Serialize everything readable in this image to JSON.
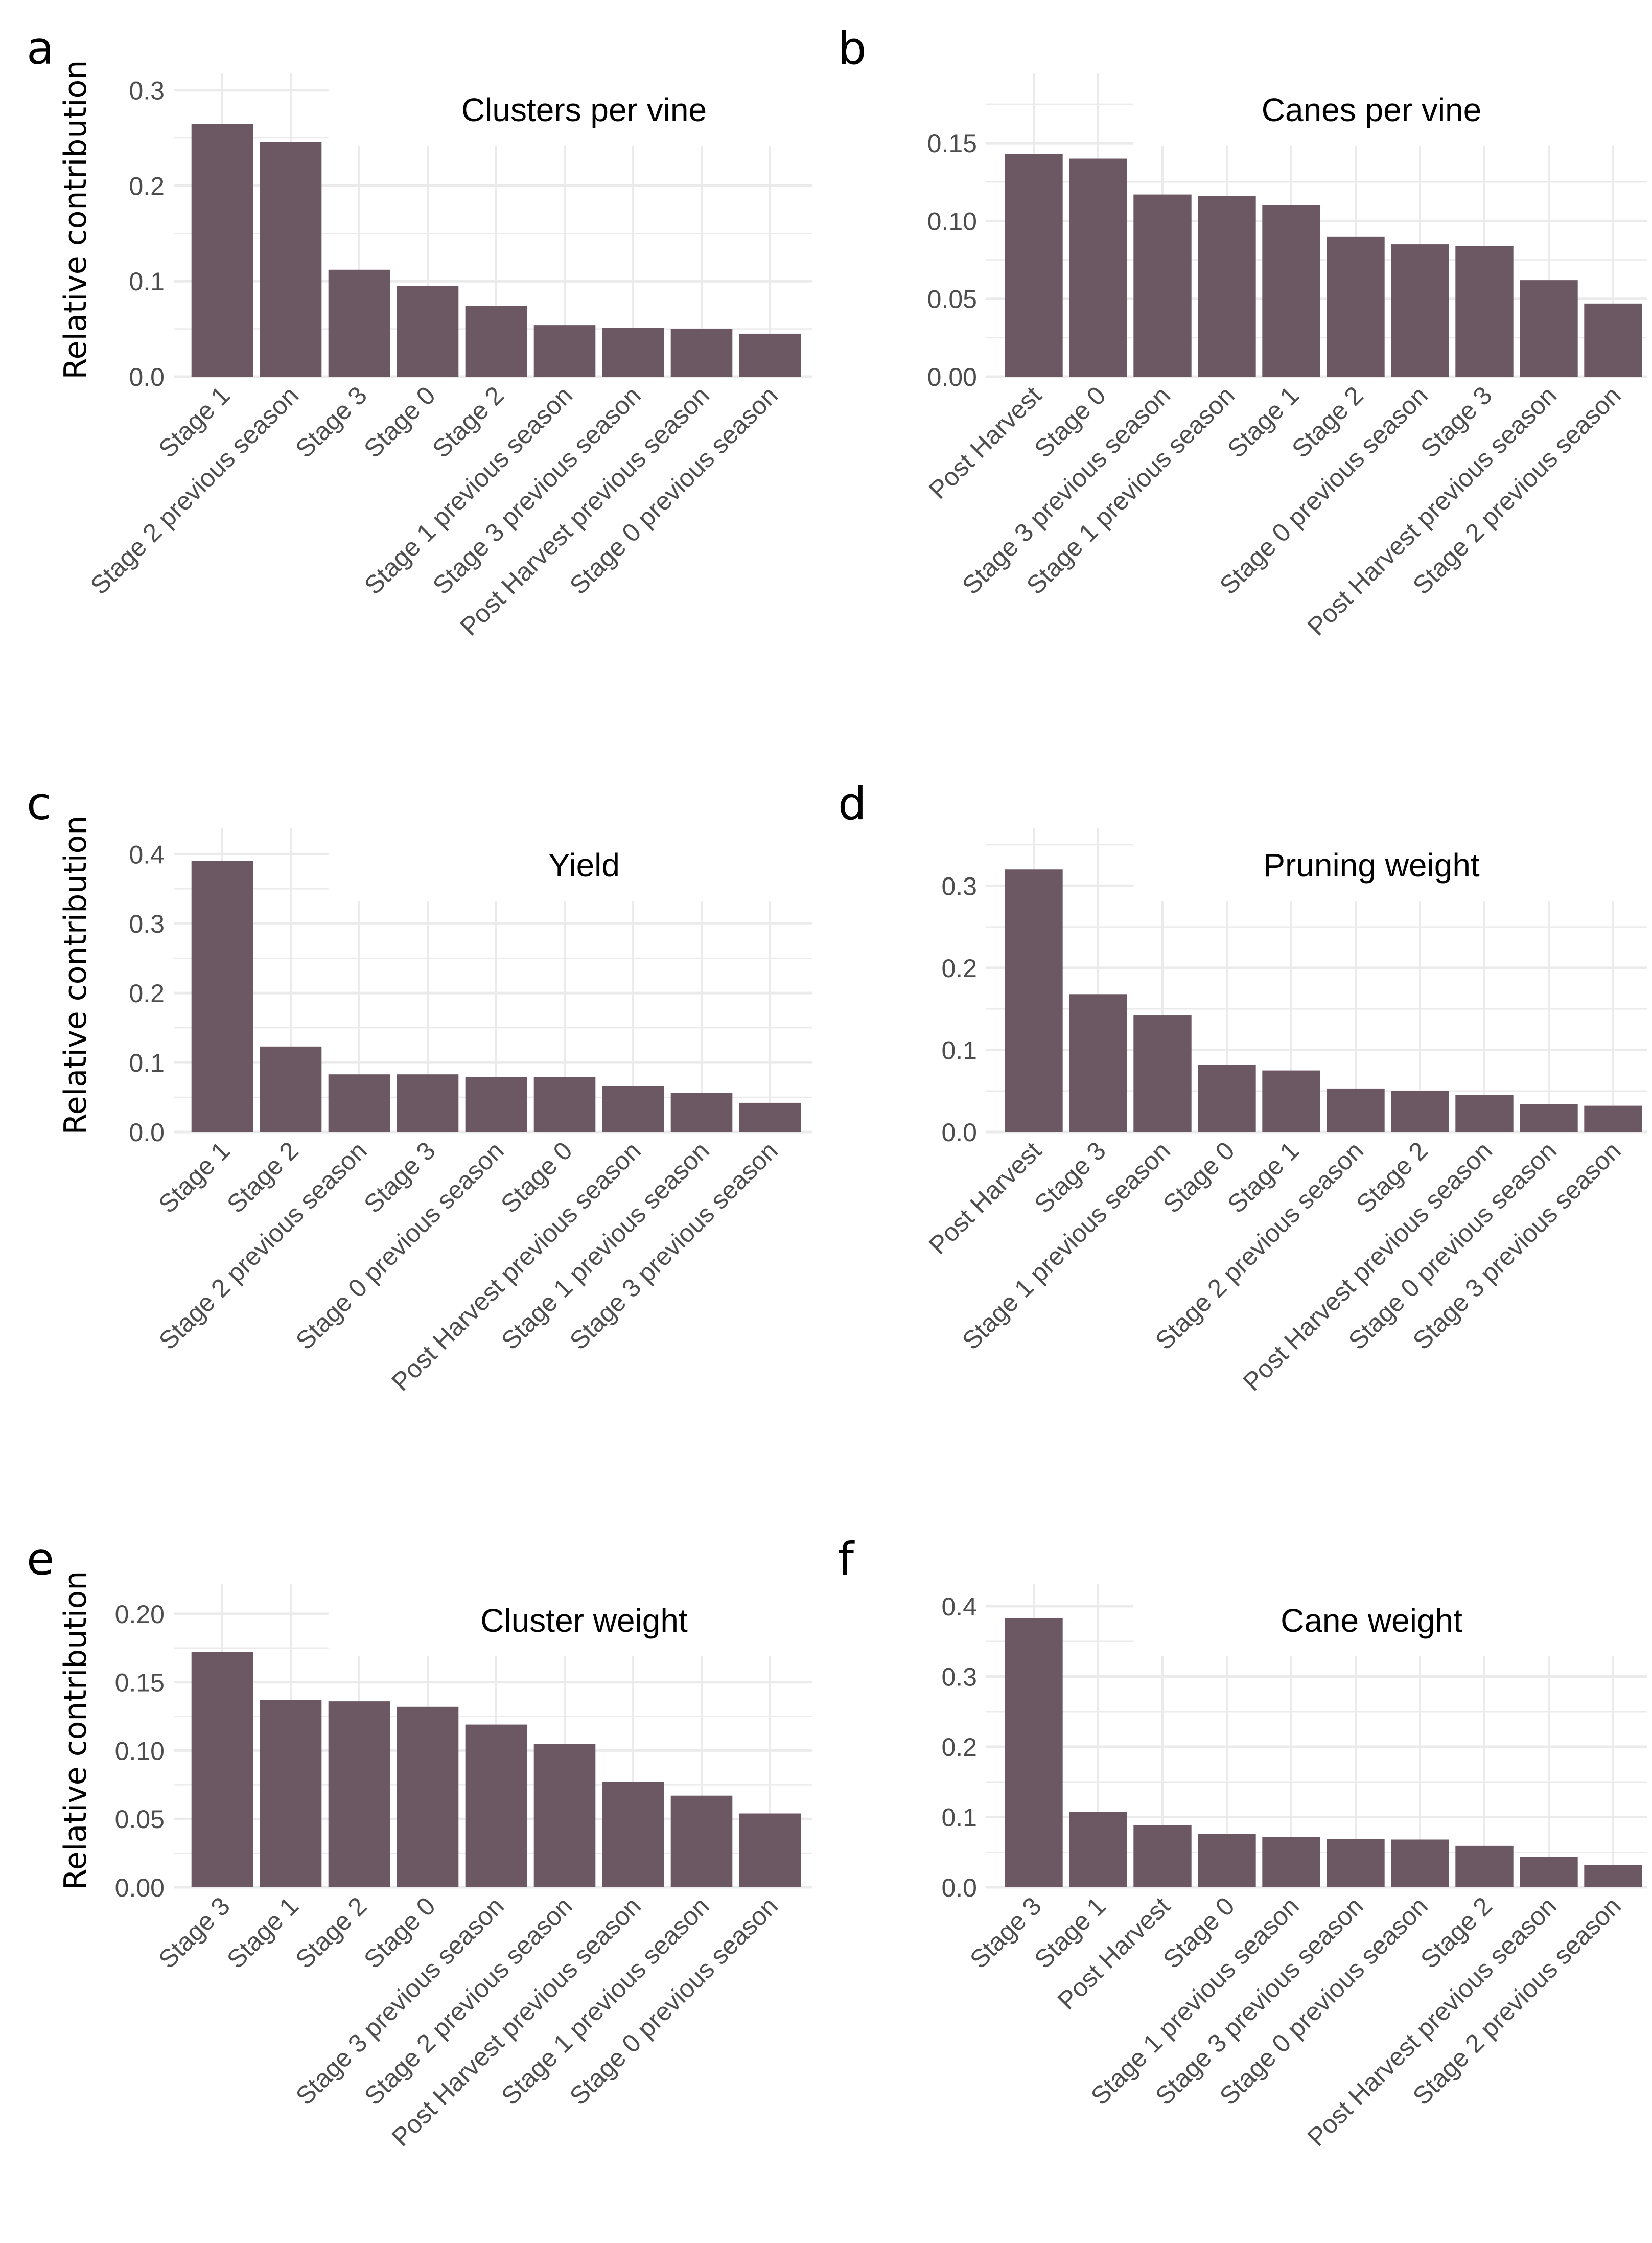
{
  "colors": {
    "bar": "#6c5863",
    "grid": "#ebebeb"
  },
  "chart_data": [
    {
      "panel": "a",
      "type": "bar",
      "title": "Clusters per vine",
      "ylabel": "Relative contribution",
      "ylim": [
        0,
        0.318
      ],
      "yticks": [
        "0.0",
        "0.1",
        "0.2",
        "0.3"
      ],
      "ytick_values": [
        0,
        0.1,
        0.2,
        0.3
      ],
      "grid": true,
      "categories": [
        "Stage 1",
        "Stage 2 previous season",
        "Stage 3",
        "Stage 0",
        "Stage 2",
        "Stage 1 previous season",
        "Stage 3 previous season",
        "Post Harvest previous season",
        "Stage 0 previous season"
      ],
      "values": [
        0.265,
        0.246,
        0.112,
        0.095,
        0.074,
        0.054,
        0.051,
        0.05,
        0.045
      ]
    },
    {
      "panel": "b",
      "type": "bar",
      "title": "Canes per vine",
      "ylabel": "",
      "ylim": [
        0,
        0.195
      ],
      "yticks": [
        "0.00",
        "0.05",
        "0.10",
        "0.15"
      ],
      "ytick_values": [
        0,
        0.05,
        0.1,
        0.15
      ],
      "grid": true,
      "categories": [
        "Post Harvest",
        "Stage 0",
        "Stage 3 previous season",
        "Stage 1 previous season",
        "Stage 1",
        "Stage 2",
        "Stage 0 previous season",
        "Stage 3",
        "Post Harvest previous season",
        "Stage 2 previous season"
      ],
      "values": [
        0.143,
        0.14,
        0.117,
        0.116,
        0.11,
        0.09,
        0.085,
        0.084,
        0.062,
        0.047
      ]
    },
    {
      "panel": "c",
      "type": "bar",
      "title": "Yield",
      "ylabel": "Relative contribution",
      "ylim": [
        0,
        0.437
      ],
      "yticks": [
        "0.0",
        "0.1",
        "0.2",
        "0.3",
        "0.4"
      ],
      "ytick_values": [
        0,
        0.1,
        0.2,
        0.3,
        0.4
      ],
      "grid": true,
      "categories": [
        "Stage 1",
        "Stage 2",
        "Stage 2 previous season",
        "Stage 3",
        "Stage 0 previous season",
        "Stage 0",
        "Post Harvest previous season",
        "Stage 1 previous season",
        "Stage 3 previous season"
      ],
      "values": [
        0.39,
        0.123,
        0.083,
        0.083,
        0.079,
        0.079,
        0.066,
        0.056,
        0.042
      ]
    },
    {
      "panel": "d",
      "type": "bar",
      "title": "Pruning weight",
      "ylabel": "",
      "ylim": [
        0,
        0.37
      ],
      "yticks": [
        "0.0",
        "0.1",
        "0.2",
        "0.3"
      ],
      "ytick_values": [
        0,
        0.1,
        0.2,
        0.3
      ],
      "grid": true,
      "categories": [
        "Post Harvest",
        "Stage 3",
        "Stage 1 previous season",
        "Stage 0",
        "Stage 1",
        "Stage 2 previous season",
        "Stage 2",
        "Post Harvest previous season",
        "Stage 0 previous season",
        "Stage 3 previous season"
      ],
      "values": [
        0.32,
        0.168,
        0.142,
        0.082,
        0.075,
        0.053,
        0.05,
        0.045,
        0.034,
        0.032
      ]
    },
    {
      "panel": "e",
      "type": "bar",
      "title": "Cluster weight",
      "ylabel": "Relative contribution",
      "ylim": [
        0,
        0.222
      ],
      "yticks": [
        "0.00",
        "0.05",
        "0.10",
        "0.15",
        "0.20"
      ],
      "ytick_values": [
        0,
        0.05,
        0.1,
        0.15,
        0.2
      ],
      "grid": true,
      "categories": [
        "Stage 3",
        "Stage 1",
        "Stage 2",
        "Stage 0",
        "Stage 3 previous season",
        "Stage 2 previous season",
        "Post Harvest previous season",
        "Stage 1 previous season",
        "Stage 0 previous season"
      ],
      "values": [
        0.172,
        0.137,
        0.136,
        0.132,
        0.119,
        0.105,
        0.077,
        0.067,
        0.054
      ]
    },
    {
      "panel": "f",
      "type": "bar",
      "title": "Cane weight",
      "ylabel": "",
      "ylim": [
        0,
        0.432
      ],
      "yticks": [
        "0.0",
        "0.1",
        "0.2",
        "0.3",
        "0.4"
      ],
      "ytick_values": [
        0,
        0.1,
        0.2,
        0.3,
        0.4
      ],
      "grid": true,
      "categories": [
        "Stage 3",
        "Stage 1",
        "Post Harvest",
        "Stage 0",
        "Stage 1 previous season",
        "Stage 3 previous season",
        "Stage 0 previous season",
        "Stage 2",
        "Post Harvest previous season",
        "Stage 2 previous season"
      ],
      "values": [
        0.383,
        0.107,
        0.088,
        0.076,
        0.072,
        0.069,
        0.068,
        0.059,
        0.043,
        0.032
      ]
    }
  ]
}
